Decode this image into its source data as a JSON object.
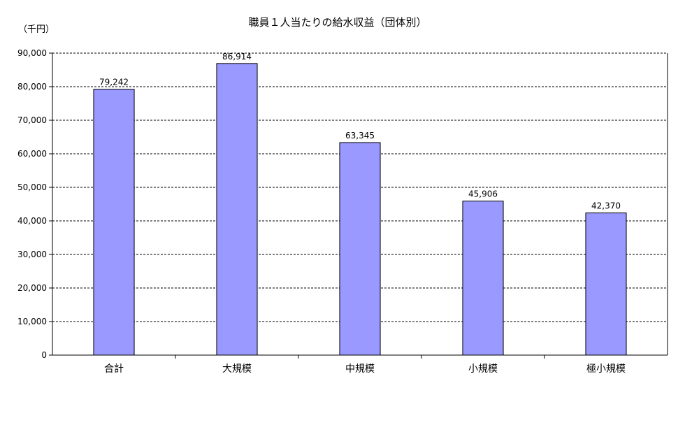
{
  "chart_data": {
    "type": "bar",
    "title": "職員１人当たりの給水収益（団体別）",
    "unit_label": "（千円）",
    "categories": [
      "合計",
      "大規模",
      "中規模",
      "小規模",
      "極小規模"
    ],
    "series": [
      {
        "values": [
          79242,
          86914,
          63345,
          45906,
          42370
        ]
      }
    ],
    "data_labels": [
      "79,242",
      "86,914",
      "63,345",
      "45,906",
      "42,370"
    ],
    "ylim": [
      0,
      90000
    ],
    "yticks": [
      "0",
      "10,000",
      "20,000",
      "30,000",
      "40,000",
      "50,000",
      "60,000",
      "70,000",
      "80,000",
      "90,000"
    ],
    "grid": "horizontal-dashed",
    "legend": "none",
    "colors": {
      "bar_fill": "#9999ff",
      "bar_stroke": "#000000",
      "grid": "#000000",
      "axis": "#000000"
    }
  }
}
